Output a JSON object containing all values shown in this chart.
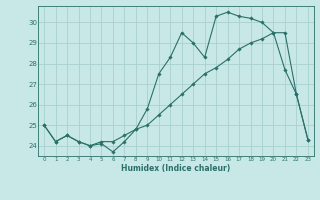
{
  "xlabel": "Humidex (Indice chaleur)",
  "ylabel": "",
  "bg_color": "#c8e8e8",
  "grid_color": "#a8d0d0",
  "line_color": "#2a7068",
  "xlim": [
    -0.5,
    23.5
  ],
  "ylim": [
    23.5,
    30.8
  ],
  "yticks": [
    24,
    25,
    26,
    27,
    28,
    29,
    30
  ],
  "xticks": [
    0,
    1,
    2,
    3,
    4,
    5,
    6,
    7,
    8,
    9,
    10,
    11,
    12,
    13,
    14,
    15,
    16,
    17,
    18,
    19,
    20,
    21,
    22,
    23
  ],
  "line1_x": [
    0,
    1,
    2,
    3,
    4,
    5,
    6,
    7,
    8,
    9,
    10,
    11,
    12,
    13,
    14,
    15,
    16,
    17,
    18,
    19,
    20,
    21,
    22,
    23
  ],
  "line1_y": [
    25.0,
    24.2,
    24.5,
    24.2,
    24.0,
    24.1,
    23.7,
    24.2,
    24.8,
    25.8,
    27.5,
    28.3,
    29.5,
    29.0,
    28.3,
    30.3,
    30.5,
    30.3,
    30.2,
    30.0,
    29.5,
    27.7,
    26.5,
    24.3
  ],
  "line2_x": [
    0,
    1,
    2,
    3,
    4,
    5,
    6,
    7,
    8,
    9,
    10,
    11,
    12,
    13,
    14,
    15,
    16,
    17,
    18,
    19,
    20,
    21,
    22,
    23
  ],
  "line2_y": [
    25.0,
    24.2,
    24.5,
    24.2,
    24.0,
    24.2,
    24.2,
    24.5,
    24.8,
    25.0,
    25.5,
    26.0,
    26.5,
    27.0,
    27.5,
    27.8,
    28.2,
    28.7,
    29.0,
    29.2,
    29.5,
    29.5,
    26.5,
    24.3
  ]
}
